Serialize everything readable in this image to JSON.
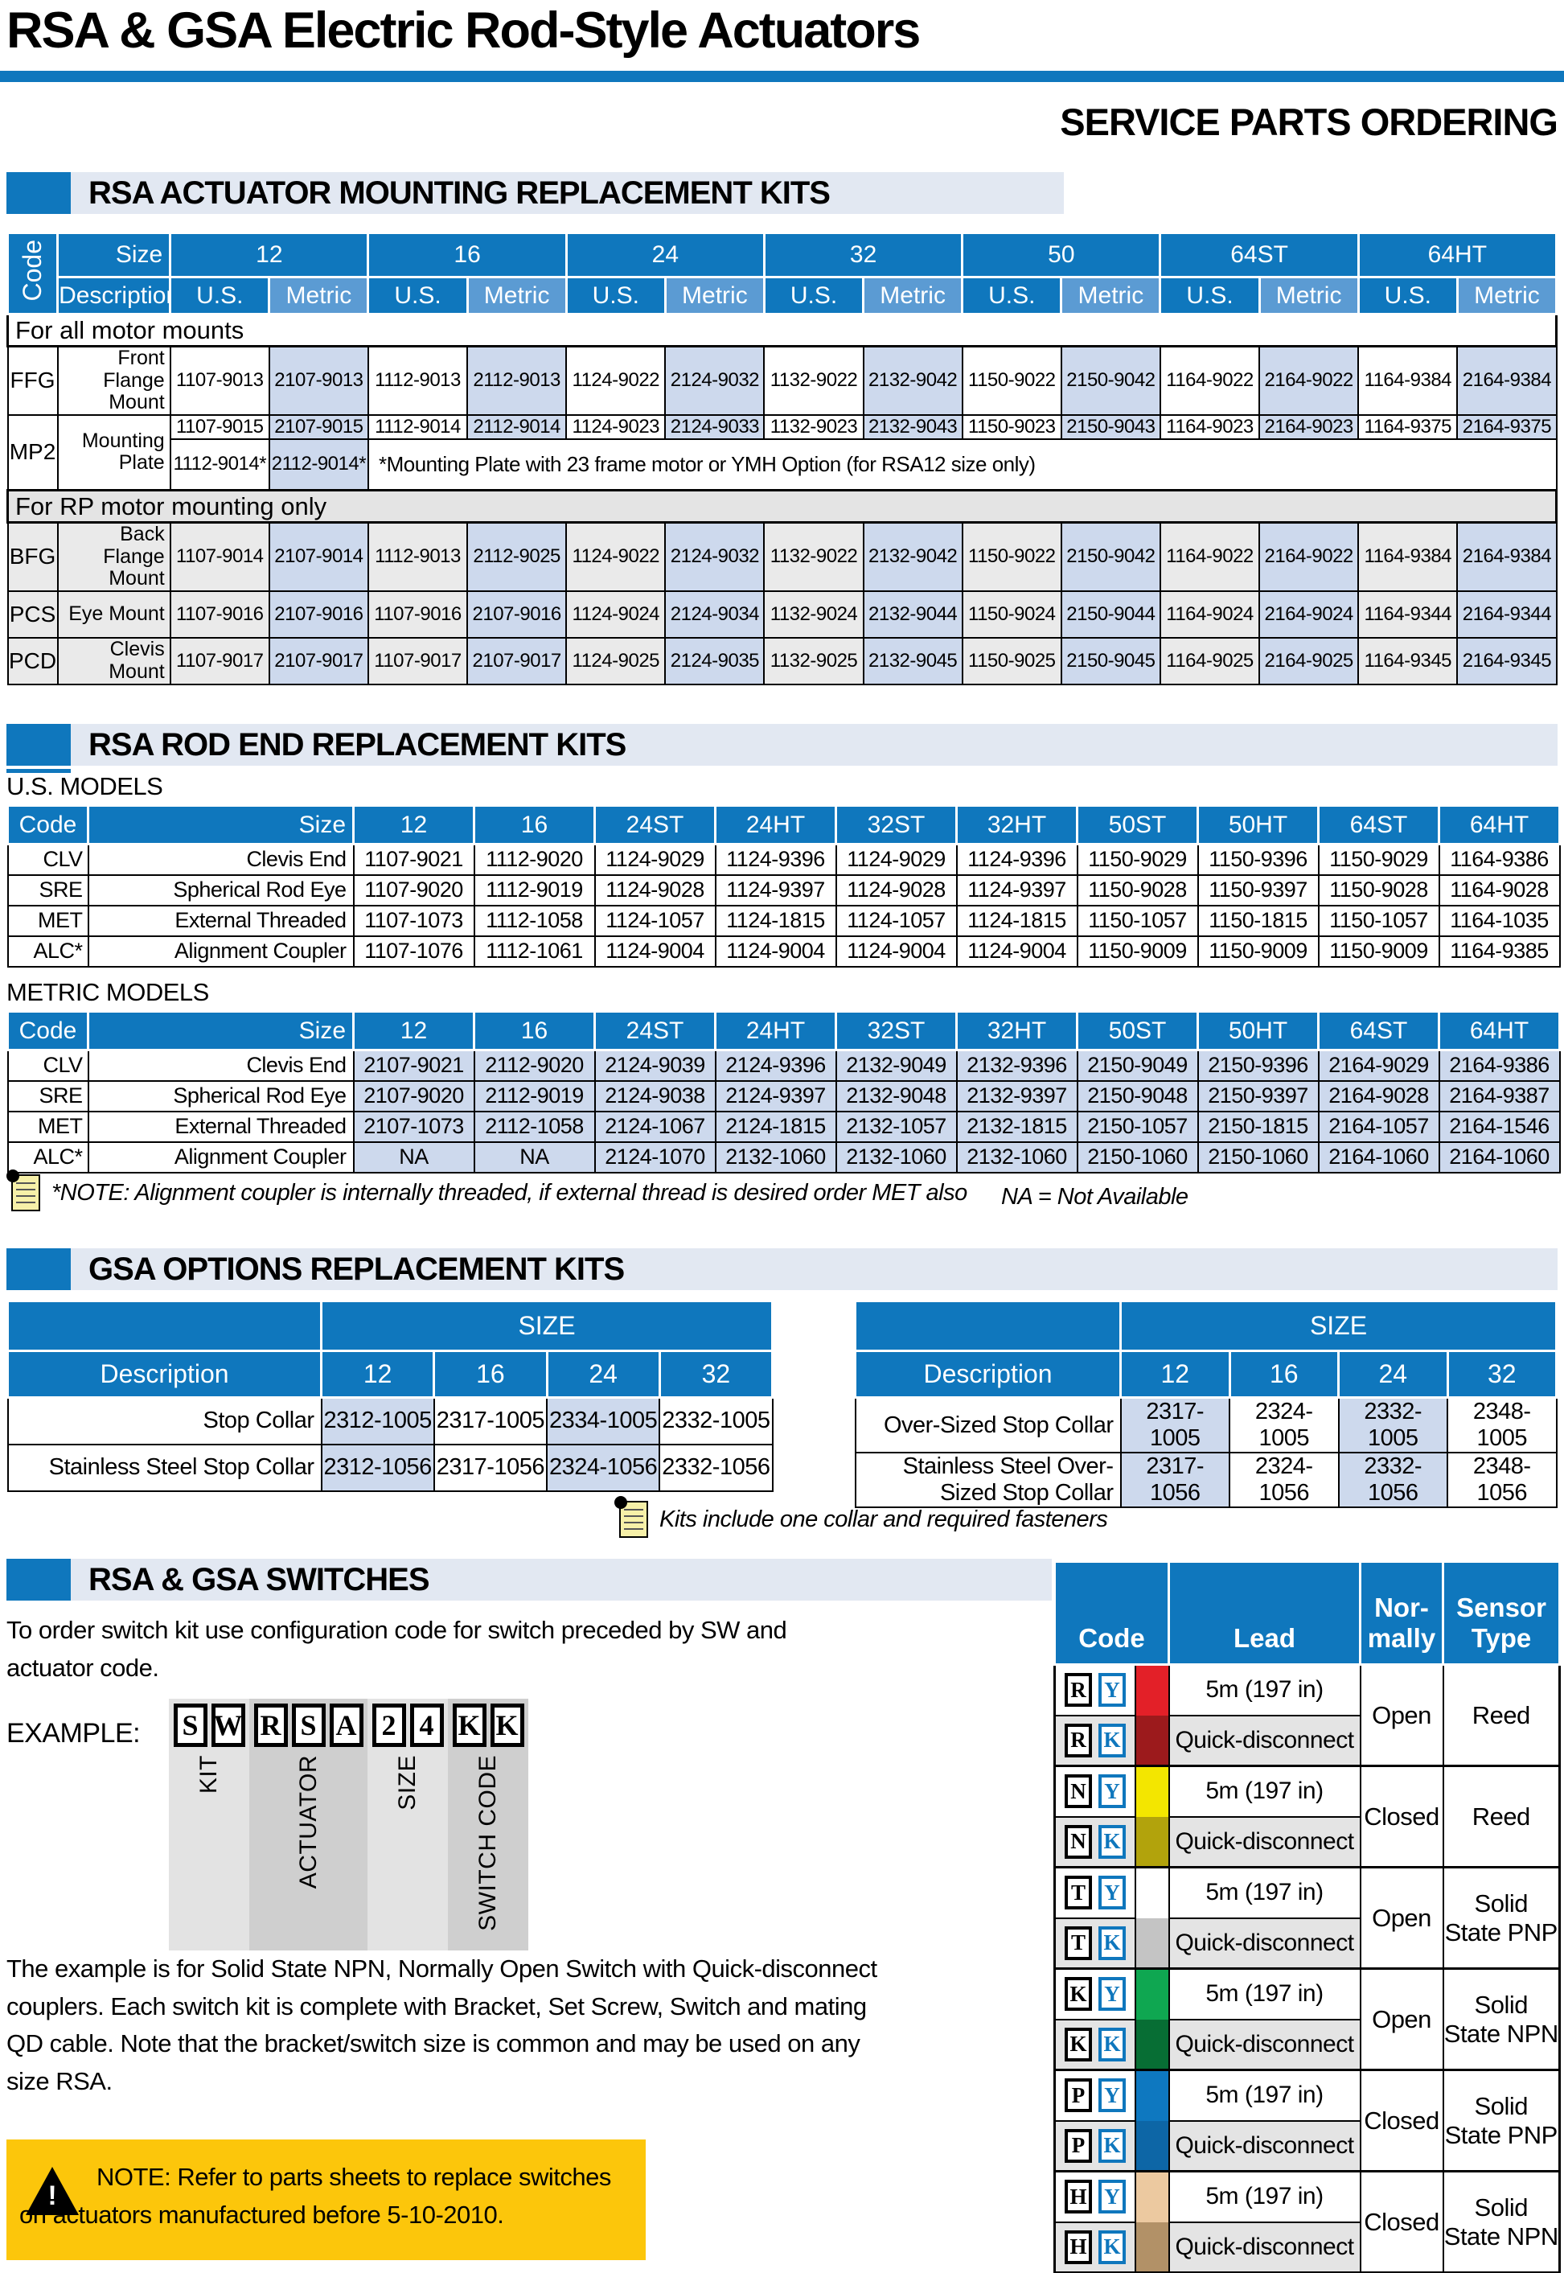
{
  "page": {
    "title": "RSA & GSA Electric Rod-Style Actuators",
    "subtitle": "SERVICE PARTS ORDERING"
  },
  "colors": {
    "header_blue": "#0f77bd",
    "metric_header_blue": "#5b9bd3",
    "metric_cell_blue": "#cdd9ed",
    "section_bg": "#e2e8f2",
    "warning_yellow": "#fcc60b"
  },
  "mounting": {
    "section_title": "RSA ACTUATOR MOUNTING REPLACEMENT KITS",
    "code_header": "Code",
    "size_header": "Size",
    "desc_header": "Description",
    "unit_headers": [
      "U.S.",
      "Metric"
    ],
    "sizes": [
      "12",
      "16",
      "24",
      "32",
      "50",
      "64ST",
      "64HT"
    ],
    "band_all": "For all motor mounts",
    "band_rp": "For RP motor mounting only",
    "rows": [
      {
        "code": "FFG",
        "desc": "Front Flange Mount",
        "gray": false,
        "values": [
          "1107-9013",
          "2107-9013",
          "1112-9013",
          "2112-9013",
          "1124-9022",
          "2124-9032",
          "1132-9022",
          "2132-9042",
          "1150-9022",
          "2150-9042",
          "1164-9022",
          "2164-9022",
          "1164-9384",
          "2164-9384"
        ]
      },
      {
        "code": "MP2",
        "desc": "Mounting Plate",
        "gray": false,
        "values": [
          "1107-9015",
          "2107-9015",
          "1112-9014",
          "2112-9014",
          "1124-9023",
          "2124-9033",
          "1132-9023",
          "2132-9043",
          "1150-9023",
          "2150-9043",
          "1164-9023",
          "2164-9023",
          "1164-9375",
          "2164-9375"
        ],
        "extra_us": "1112-9014*",
        "extra_metric": "2112-9014*",
        "extra_note": "*Mounting Plate with 23 frame motor or YMH Option (for RSA12 size only)"
      },
      {
        "code": "BFG",
        "desc": "Back Flange Mount",
        "gray": true,
        "values": [
          "1107-9014",
          "2107-9014",
          "1112-9013",
          "2112-9025",
          "1124-9022",
          "2124-9032",
          "1132-9022",
          "2132-9042",
          "1150-9022",
          "2150-9042",
          "1164-9022",
          "2164-9022",
          "1164-9384",
          "2164-9384"
        ]
      },
      {
        "code": "PCS",
        "desc": "Eye Mount",
        "gray": true,
        "values": [
          "1107-9016",
          "2107-9016",
          "1107-9016",
          "2107-9016",
          "1124-9024",
          "2124-9034",
          "1132-9024",
          "2132-9044",
          "1150-9024",
          "2150-9044",
          "1164-9024",
          "2164-9024",
          "1164-9344",
          "2164-9344"
        ]
      },
      {
        "code": "PCD",
        "desc": "Clevis Mount",
        "gray": true,
        "values": [
          "1107-9017",
          "2107-9017",
          "1107-9017",
          "2107-9017",
          "1124-9025",
          "2124-9035",
          "1132-9025",
          "2132-9045",
          "1150-9025",
          "2150-9045",
          "1164-9025",
          "2164-9025",
          "1164-9345",
          "2164-9345"
        ]
      }
    ]
  },
  "rodend": {
    "section_title": "RSA ROD END REPLACEMENT KITS",
    "us_label": "U.S. MODELS",
    "metric_label": "METRIC MODELS",
    "code_header": "Code",
    "size_header": "Size",
    "sizes": [
      "12",
      "16",
      "24ST",
      "24HT",
      "32ST",
      "32HT",
      "50ST",
      "50HT",
      "64ST",
      "64HT"
    ],
    "us_rows": [
      {
        "code": "CLV",
        "desc": "Clevis End",
        "values": [
          "1107-9021",
          "1112-9020",
          "1124-9029",
          "1124-9396",
          "1124-9029",
          "1124-9396",
          "1150-9029",
          "1150-9396",
          "1150-9029",
          "1164-9386"
        ]
      },
      {
        "code": "SRE",
        "desc": "Spherical Rod Eye",
        "values": [
          "1107-9020",
          "1112-9019",
          "1124-9028",
          "1124-9397",
          "1124-9028",
          "1124-9397",
          "1150-9028",
          "1150-9397",
          "1150-9028",
          "1164-9028"
        ]
      },
      {
        "code": "MET",
        "desc": "External Threaded",
        "values": [
          "1107-1073",
          "1112-1058",
          "1124-1057",
          "1124-1815",
          "1124-1057",
          "1124-1815",
          "1150-1057",
          "1150-1815",
          "1150-1057",
          "1164-1035"
        ]
      },
      {
        "code": "ALC*",
        "desc": "Alignment Coupler",
        "values": [
          "1107-1076",
          "1112-1061",
          "1124-9004",
          "1124-9004",
          "1124-9004",
          "1124-9004",
          "1150-9009",
          "1150-9009",
          "1150-9009",
          "1164-9385"
        ]
      }
    ],
    "metric_rows": [
      {
        "code": "CLV",
        "desc": "Clevis End",
        "values": [
          "2107-9021",
          "2112-9020",
          "2124-9039",
          "2124-9396",
          "2132-9049",
          "2132-9396",
          "2150-9049",
          "2150-9396",
          "2164-9029",
          "2164-9386"
        ]
      },
      {
        "code": "SRE",
        "desc": "Spherical Rod Eye",
        "values": [
          "2107-9020",
          "2112-9019",
          "2124-9038",
          "2124-9397",
          "2132-9048",
          "2132-9397",
          "2150-9048",
          "2150-9397",
          "2164-9028",
          "2164-9387"
        ]
      },
      {
        "code": "MET",
        "desc": "External Threaded",
        "values": [
          "2107-1073",
          "2112-1058",
          "2124-1067",
          "2124-1815",
          "2132-1057",
          "2132-1815",
          "2150-1057",
          "2150-1815",
          "2164-1057",
          "2164-1546"
        ]
      },
      {
        "code": "ALC*",
        "desc": "Alignment Coupler",
        "values": [
          "NA",
          "NA",
          "2124-1070",
          "2132-1060",
          "2132-1060",
          "2132-1060",
          "2150-1060",
          "2150-1060",
          "2164-1060",
          "2164-1060"
        ]
      }
    ],
    "note": "*NOTE: Alignment coupler is internally threaded, if external thread is desired order MET also",
    "na_note": "NA = Not Available"
  },
  "gsa": {
    "section_title": "GSA OPTIONS REPLACEMENT KITS",
    "size_span_header": "SIZE",
    "desc_header": "Description",
    "sizes": [
      "12",
      "16",
      "24",
      "32"
    ],
    "left_rows": [
      {
        "desc": "Stop Collar",
        "values": [
          "2312-1005",
          "2317-1005",
          "2334-1005",
          "2332-1005"
        ]
      },
      {
        "desc": "Stainless Steel Stop Collar",
        "values": [
          "2312-1056",
          "2317-1056",
          "2324-1056",
          "2332-1056"
        ]
      }
    ],
    "right_rows": [
      {
        "desc": "Over-Sized Stop Collar",
        "values": [
          "2317-1005",
          "2324-1005",
          "2332-1005",
          "2348-1005"
        ]
      },
      {
        "desc": "Stainless Steel Over-Sized Stop Collar",
        "values": [
          "2317-1056",
          "2324-1056",
          "2332-1056",
          "2348-1056"
        ]
      }
    ],
    "note": "Kits include one collar and required fasteners"
  },
  "switches": {
    "section_title": "RSA & GSA SWITCHES",
    "intro": "To order switch kit use configuration code for switch preceded by SW and actuator code.",
    "example_label": "EXAMPLE:",
    "example_groups": [
      {
        "label": "KIT",
        "letters": [
          "S",
          "W"
        ],
        "shade": "light"
      },
      {
        "label": "ACTUATOR",
        "letters": [
          "R",
          "S",
          "A"
        ],
        "shade": "dark"
      },
      {
        "label": "SIZE",
        "letters": [
          "2",
          "4"
        ],
        "shade": "light"
      },
      {
        "label": "SWITCH CODE",
        "letters": [
          "K",
          "K"
        ],
        "shade": "dark"
      }
    ],
    "body": "The example is for Solid State NPN, Normally Open Switch with Quick-disconnect couplers. Each switch kit  is complete with Bracket, Set Screw, Switch and mating QD cable. Note that the bracket/switch size is common and may be used on any size RSA.",
    "warning": "NOTE: Refer to parts sheets to replace switches on actuators manufactured before 5-10-2010.",
    "table": {
      "code_header": "Code",
      "lead_header": "Lead",
      "normally_header": [
        "Nor-",
        "mally"
      ],
      "sensor_header": [
        "Sensor",
        "Type"
      ],
      "lead_cable": "5m (197 in)",
      "lead_qd": "Quick-disconnect",
      "groups": [
        {
          "letter": "R",
          "normally": "Open",
          "sensor": "Reed",
          "swatch_y": "#e32028",
          "swatch_k": "#9c1a1c"
        },
        {
          "letter": "N",
          "normally": "Closed",
          "sensor": "Reed",
          "swatch_y": "#f3e600",
          "swatch_k": "#b2a30c"
        },
        {
          "letter": "T",
          "normally": "Open",
          "sensor": "Solid State PNP",
          "swatch_y": "#ffffff",
          "swatch_k": "#c4c4c4"
        },
        {
          "letter": "K",
          "normally": "Open",
          "sensor": "Solid State NPN",
          "swatch_y": "#0fa751",
          "swatch_k": "#076e34"
        },
        {
          "letter": "P",
          "normally": "Closed",
          "sensor": "Solid State PNP",
          "swatch_y": "#0e78c0",
          "swatch_k": "#0d66a6"
        },
        {
          "letter": "H",
          "normally": "Closed",
          "sensor": "Solid State NPN",
          "swatch_y": "#ecc9a0",
          "swatch_k": "#b29167"
        }
      ]
    }
  }
}
